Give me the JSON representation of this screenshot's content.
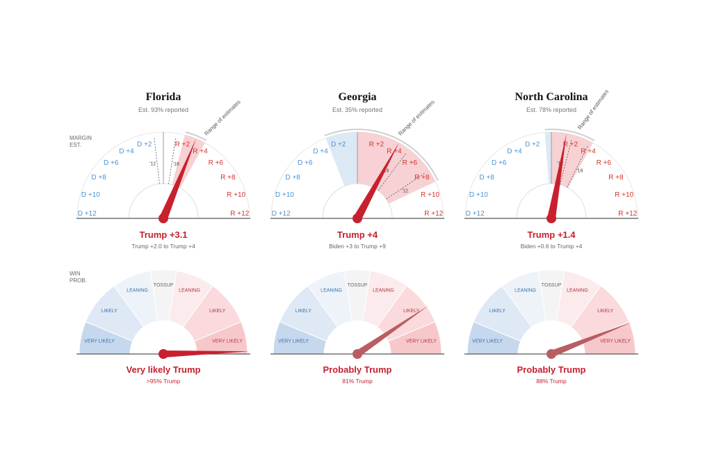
{
  "row_labels": {
    "margin": [
      "MARGIN",
      "EST."
    ],
    "win_prob": [
      "WIN",
      "PROB."
    ]
  },
  "range_label": "Range of estimates",
  "colors": {
    "dem": "#4a90d1",
    "rep": "#d0342c",
    "needle": "#c8202e",
    "needle_win": "#b85e63",
    "range_fill": "#f6c9cb",
    "dem_range_fill": "#dce9f5",
    "dem_zone": [
      "#c6d8ee",
      "#dfe9f5",
      "#eef3f9"
    ],
    "rep_zone": [
      "#f7c8cb",
      "#fadadc",
      "#fcebec"
    ],
    "tossup_zone": "#f4f4f4"
  },
  "margin_ticks": {
    "dem": [
      "D +12",
      "D +10",
      "D +8",
      "D +6",
      "D +4",
      "D +2"
    ],
    "rep": [
      "R +2",
      "R +4",
      "R +6",
      "R +8",
      "R +10",
      "R +12"
    ]
  },
  "win_zones": [
    "VERY LIKELY",
    "LIKELY",
    "LEANING",
    "TOSSUP",
    "LEANING",
    "LIKELY",
    "VERY LIKELY"
  ],
  "chart_data": [
    {
      "type": "gauge",
      "state": "Florida",
      "reported": "Est. 93% reported",
      "margin": {
        "estimate": 3.1,
        "range": [
          2.0,
          4.0
        ],
        "result_label": "Trump +3.1",
        "range_label": "Trump +2.0 to Trump +4",
        "history": [
          {
            "year": "'12",
            "margin": -0.9
          },
          {
            "year": "'16",
            "margin": 1.2
          }
        ]
      },
      "win_probability": {
        "trump_pct": 99,
        "result_label": "Very likely Trump",
        "pct_label": ">95% Trump"
      }
    },
    {
      "type": "gauge",
      "state": "Georgia",
      "reported": "Est. 35% reported",
      "margin": {
        "estimate": 4,
        "range": [
          -3,
          9
        ],
        "result_label": "Trump +4",
        "range_label": "Biden +3 to Trump +9",
        "history": [
          {
            "year": "'16",
            "margin": 5.1
          },
          {
            "year": "'12",
            "margin": 7.8
          }
        ]
      },
      "win_probability": {
        "trump_pct": 81,
        "result_label": "Probably Trump",
        "pct_label": "81% Trump"
      }
    },
    {
      "type": "gauge",
      "state": "North Carolina",
      "reported": "Est. 78% reported",
      "margin": {
        "estimate": 1.4,
        "range": [
          -0.6,
          4.0
        ],
        "result_label": "Trump +1.4",
        "range_label": "Biden +0.6 to Trump +4",
        "history": [
          {
            "year": "'12",
            "margin": 2.0
          },
          {
            "year": "'16",
            "margin": 3.7
          }
        ]
      },
      "win_probability": {
        "trump_pct": 88,
        "result_label": "Probably Trump",
        "pct_label": "88% Trump"
      }
    }
  ]
}
